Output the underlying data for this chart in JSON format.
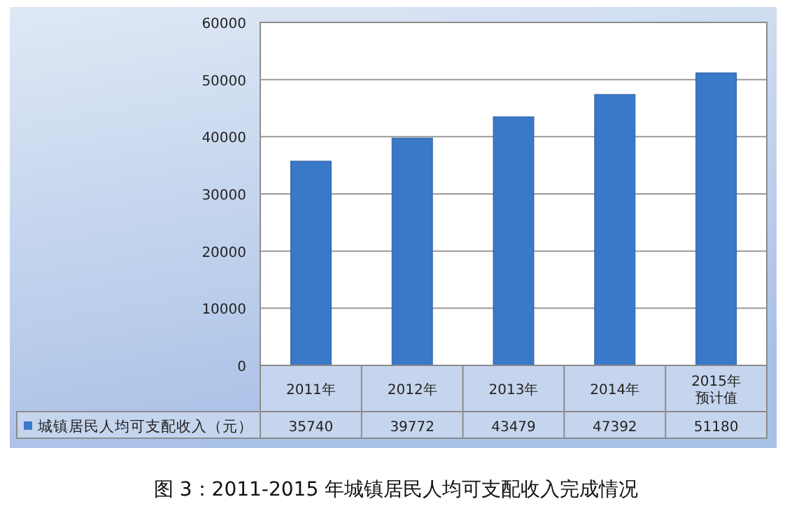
{
  "chart_data": {
    "type": "bar",
    "title": "图 3：2011-2015 年城镇居民人均可支配收入完成情况",
    "categories": [
      "2011年",
      "2012年",
      "2013年",
      "2014年",
      "2015年预计值"
    ],
    "series": [
      {
        "name": "城镇居民人均可支配收入（元）",
        "color": "#3a78c8",
        "values": [
          35740,
          39772,
          43479,
          47392,
          51180
        ]
      }
    ],
    "ylim": [
      0,
      60000
    ],
    "yticks": [
      0,
      10000,
      20000,
      30000,
      40000,
      50000,
      60000
    ],
    "grid": "y",
    "data_labels": true,
    "legend": "bottom"
  }
}
